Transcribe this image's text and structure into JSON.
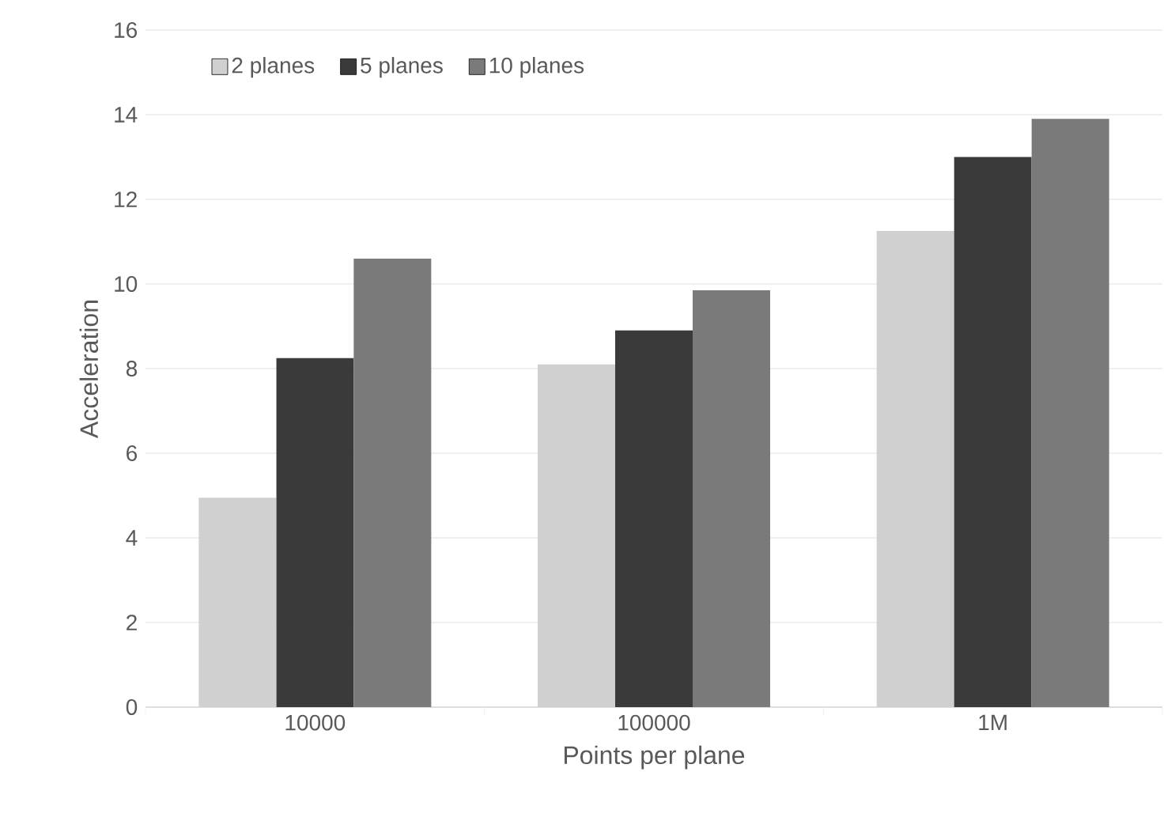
{
  "chart_data": {
    "type": "bar",
    "xlabel": "Points per plane",
    "ylabel": "Acceleration",
    "categories": [
      "10000",
      "100000",
      "1M"
    ],
    "series": [
      {
        "name": "2 planes",
        "color": "#d0d0d0",
        "values": [
          4.95,
          8.1,
          11.25
        ]
      },
      {
        "name": "5 planes",
        "color": "#3a3a3a",
        "values": [
          8.25,
          8.9,
          13.0
        ]
      },
      {
        "name": "10 planes",
        "color": "#7a7a7a",
        "values": [
          10.6,
          9.85,
          13.9
        ]
      }
    ],
    "ylim": [
      0,
      16
    ],
    "yticks": [
      0,
      2,
      4,
      6,
      8,
      10,
      12,
      14,
      16
    ],
    "grid": "y",
    "legend": "top left"
  }
}
